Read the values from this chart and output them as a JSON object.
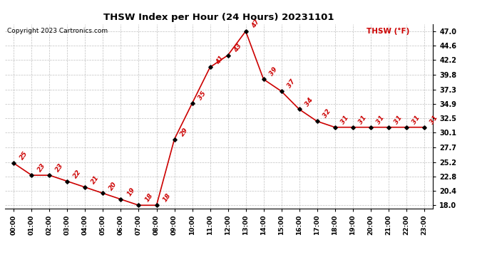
{
  "title": "THSW Index per Hour (24 Hours) 20231101",
  "copyright": "Copyright 2023 Cartronics.com",
  "legend_label": "THSW (°F)",
  "hours": [
    0,
    1,
    2,
    3,
    4,
    5,
    6,
    7,
    8,
    9,
    10,
    11,
    12,
    13,
    14,
    15,
    16,
    17,
    18,
    19,
    20,
    21,
    22,
    23
  ],
  "values": [
    25,
    23,
    23,
    22,
    21,
    20,
    19,
    18,
    18,
    29,
    35,
    41,
    43,
    47,
    39,
    37,
    34,
    32,
    31,
    31,
    31,
    31,
    31,
    31
  ],
  "line_color": "#cc0000",
  "marker_color": "#000000",
  "background_color": "#ffffff",
  "grid_color": "#b0b0b0",
  "title_color": "#000000",
  "copyright_color": "#000000",
  "legend_color": "#cc0000",
  "yticks": [
    18.0,
    20.4,
    22.8,
    25.2,
    27.7,
    30.1,
    32.5,
    34.9,
    37.3,
    39.8,
    42.2,
    44.6,
    47.0
  ],
  "ylim": [
    17.5,
    48.2
  ],
  "xlim": [
    -0.5,
    23.5
  ]
}
